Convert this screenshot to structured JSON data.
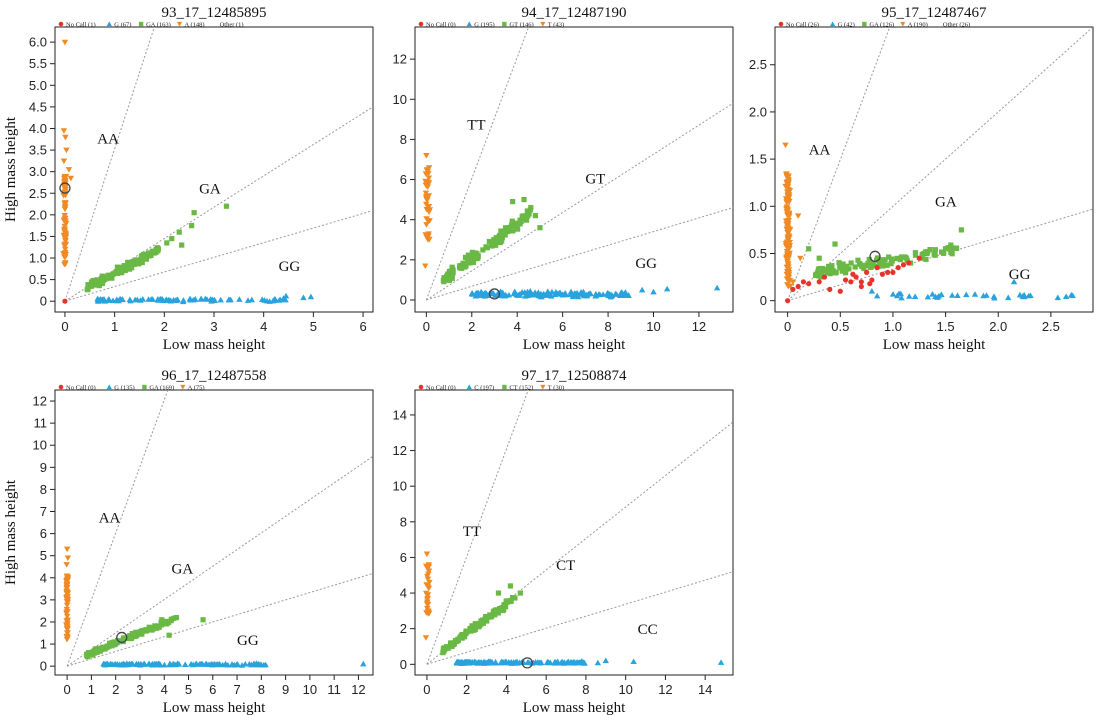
{
  "colors": {
    "no_call": "#e8322a",
    "hom_low": "#29a3dd",
    "het": "#6ab845",
    "hom_high": "#f08a24",
    "other": "#888888"
  },
  "chart_data": [
    {
      "type": "scatter",
      "title": "93_17_12485895",
      "xlabel": "Low mass height",
      "ylabel": "High mass height",
      "xlim": [
        -0.2,
        6.2
      ],
      "ylim": [
        -0.25,
        6.35
      ],
      "xticks": [
        0,
        1,
        2,
        3,
        4,
        5,
        6
      ],
      "yticks": [
        0,
        0.5,
        1.0,
        1.5,
        2.0,
        2.5,
        3.0,
        3.5,
        4.0,
        4.5,
        5.0,
        5.5,
        6.0
      ],
      "ytick_labels": [
        "0",
        "0.5",
        "1.0",
        "1.5",
        "2.0",
        "2.5",
        "3.0",
        "3.5",
        "4.0",
        "4.5",
        "5.0",
        "5.5",
        "6.0"
      ],
      "legend": [
        "No Call (1)",
        "G (67)",
        "GA (163)",
        "A (148)",
        "Other (1)"
      ],
      "legend_position": "top-left",
      "annotations": [
        {
          "text": "AA",
          "x": 0.65,
          "y": 3.65
        },
        {
          "text": "GA",
          "x": 2.7,
          "y": 2.5
        },
        {
          "text": "GG",
          "x": 4.3,
          "y": 0.7
        }
      ],
      "reference_lines": [
        {
          "x": [
            0,
            1.8
          ],
          "y": [
            0,
            6.35
          ]
        },
        {
          "x": [
            0,
            6.2
          ],
          "y": [
            0,
            4.5
          ]
        },
        {
          "x": [
            0,
            6.2
          ],
          "y": [
            0,
            2.1
          ]
        }
      ],
      "clusters": [
        {
          "name": "AA",
          "shape": "triangle-down",
          "color": "#f08a24",
          "x_center": 0.0,
          "x_spread": 0.04,
          "y_min": 0.85,
          "y_max": 2.9,
          "n": 70,
          "extra_points": [
            {
              "x": 0.0,
              "y": 6.0
            },
            {
              "x": -0.02,
              "y": 3.95
            },
            {
              "x": 0.01,
              "y": 3.8
            },
            {
              "x": 0.03,
              "y": 3.5
            },
            {
              "x": -0.02,
              "y": 3.25
            },
            {
              "x": 0.08,
              "y": 3.05
            },
            {
              "x": 0.12,
              "y": 2.85
            }
          ]
        },
        {
          "name": "GA",
          "shape": "square",
          "color": "#6ab845",
          "x_min": 0.45,
          "x_max": 1.9,
          "slope": 0.6,
          "intercept": 0.05,
          "spread": 0.13,
          "n": 110,
          "extra_points": [
            {
              "x": 2.15,
              "y": 1.45
            },
            {
              "x": 2.3,
              "y": 1.6
            },
            {
              "x": 2.55,
              "y": 1.75
            },
            {
              "x": 2.35,
              "y": 1.3
            },
            {
              "x": 2.6,
              "y": 2.05
            },
            {
              "x": 3.25,
              "y": 2.2
            },
            {
              "x": 2.05,
              "y": 1.35
            }
          ]
        },
        {
          "name": "GG",
          "shape": "triangle-up",
          "color": "#29a3dd",
          "x_min": 0.65,
          "x_max": 4.55,
          "y_center": 0.03,
          "y_spread": 0.05,
          "n": 90,
          "extra_points": [
            {
              "x": 4.8,
              "y": 0.08
            },
            {
              "x": 4.95,
              "y": 0.1
            },
            {
              "x": 4.45,
              "y": 0.12
            }
          ]
        },
        {
          "name": "No Call",
          "shape": "circle",
          "color": "#e8322a",
          "points": [
            {
              "x": 0.0,
              "y": 0.0
            }
          ]
        }
      ],
      "highlight": {
        "x": 0.0,
        "y": 2.62
      }
    },
    {
      "type": "scatter",
      "title": "94_17_12487190",
      "xlabel": "Low mass height",
      "ylabel": "",
      "xlim": [
        -0.5,
        13.5
      ],
      "ylim": [
        -0.6,
        13.6
      ],
      "xticks": [
        0,
        2,
        4,
        6,
        8,
        10,
        12
      ],
      "yticks": [
        0,
        2,
        4,
        6,
        8,
        10,
        12
      ],
      "ytick_labels": [
        "0",
        "2",
        "4",
        "6",
        "8",
        "10",
        "12"
      ],
      "legend": [
        "No Call (0)",
        "G (195)",
        "GT (146)",
        "T (43)"
      ],
      "legend_position": "top-left",
      "annotations": [
        {
          "text": "TT",
          "x": 1.8,
          "y": 8.5
        },
        {
          "text": "GT",
          "x": 7.0,
          "y": 5.8
        },
        {
          "text": "GG",
          "x": 9.2,
          "y": 1.6
        }
      ],
      "reference_lines": [
        {
          "x": [
            0,
            4.5
          ],
          "y": [
            0,
            13.6
          ]
        },
        {
          "x": [
            0,
            13.5
          ],
          "y": [
            0,
            9.8
          ]
        },
        {
          "x": [
            0,
            13.5
          ],
          "y": [
            0,
            4.6
          ]
        }
      ],
      "clusters": [
        {
          "name": "TT",
          "shape": "triangle-down",
          "color": "#f08a24",
          "x_center": 0.05,
          "x_spread": 0.15,
          "y_min": 3.0,
          "y_max": 6.8,
          "n": 40,
          "extra_points": [
            {
              "x": 0.0,
              "y": 7.2
            },
            {
              "x": -0.05,
              "y": 1.7
            },
            {
              "x": 0.1,
              "y": 3.3
            }
          ]
        },
        {
          "name": "GT",
          "shape": "square",
          "color": "#6ab845",
          "x_min": 0.7,
          "x_max": 4.6,
          "slope": 0.85,
          "intercept": 0.4,
          "spread": 0.4,
          "n": 120,
          "extra_points": [
            {
              "x": 4.3,
              "y": 5.0
            },
            {
              "x": 4.6,
              "y": 4.6
            },
            {
              "x": 4.8,
              "y": 4.2
            },
            {
              "x": 3.8,
              "y": 4.9
            },
            {
              "x": 5.0,
              "y": 3.6
            }
          ]
        },
        {
          "name": "GG",
          "shape": "triangle-up",
          "color": "#29a3dd",
          "x_min": 2.0,
          "x_max": 9.0,
          "y_center": 0.28,
          "y_spread": 0.18,
          "n": 160,
          "extra_points": [
            {
              "x": 9.5,
              "y": 0.5
            },
            {
              "x": 10.6,
              "y": 0.55
            },
            {
              "x": 12.8,
              "y": 0.6
            },
            {
              "x": 10.0,
              "y": 0.4
            }
          ]
        }
      ],
      "highlight": {
        "x": 3.0,
        "y": 0.3
      }
    },
    {
      "type": "scatter",
      "title": "95_17_12487467",
      "xlabel": "Low mass height",
      "ylabel": "",
      "xlim": [
        -0.12,
        2.9
      ],
      "ylim": [
        -0.12,
        2.9
      ],
      "xticks": [
        0,
        0.5,
        1.0,
        1.5,
        2.0,
        2.5
      ],
      "xtick_labels": [
        "0",
        "0.5",
        "1.0",
        "1.5",
        "2.0",
        "2.5"
      ],
      "yticks": [
        0,
        0.5,
        1.0,
        1.5,
        2.0,
        2.5
      ],
      "ytick_labels": [
        "0",
        "0.5",
        "1.0",
        "1.5",
        "2.0",
        "2.5"
      ],
      "legend": [
        "No Call (26)",
        "G (42)",
        "GA (126)",
        "A (190)",
        "Other (26)"
      ],
      "legend_position": "top-left",
      "annotations": [
        {
          "text": "AA",
          "x": 0.2,
          "y": 1.55
        },
        {
          "text": "GA",
          "x": 1.4,
          "y": 1.0
        },
        {
          "text": "GG",
          "x": 2.1,
          "y": 0.23
        }
      ],
      "reference_lines": [
        {
          "x": [
            0,
            0.97
          ],
          "y": [
            0,
            2.9
          ]
        },
        {
          "x": [
            0,
            2.9
          ],
          "y": [
            0,
            2.9
          ]
        },
        {
          "x": [
            0,
            2.9
          ],
          "y": [
            0,
            0.97
          ]
        }
      ],
      "clusters": [
        {
          "name": "AA",
          "shape": "triangle-down",
          "color": "#f08a24",
          "x_center": 0.0,
          "x_spread": 0.03,
          "y_min": 0.15,
          "y_max": 1.35,
          "n": 120,
          "extra_points": [
            {
              "x": -0.02,
              "y": 1.65
            },
            {
              "x": 0.05,
              "y": 0.2
            },
            {
              "x": 0.12,
              "y": 0.45
            },
            {
              "x": 0.1,
              "y": 0.9
            }
          ]
        },
        {
          "name": "GA",
          "shape": "square",
          "color": "#6ab845",
          "x_min": 0.25,
          "x_max": 1.65,
          "slope": 0.18,
          "intercept": 0.25,
          "spread": 0.09,
          "n": 110,
          "extra_points": [
            {
              "x": 1.65,
              "y": 0.75
            },
            {
              "x": 1.5,
              "y": 0.55
            },
            {
              "x": 0.45,
              "y": 0.6
            },
            {
              "x": 0.3,
              "y": 0.45
            },
            {
              "x": 0.2,
              "y": 0.55
            }
          ]
        },
        {
          "name": "GG",
          "shape": "triangle-up",
          "color": "#29a3dd",
          "x_min": 1.0,
          "x_max": 2.8,
          "y_center": 0.05,
          "y_spread": 0.04,
          "n": 32,
          "extra_points": [
            {
              "x": 0.8,
              "y": 0.1
            },
            {
              "x": 0.85,
              "y": 0.05
            },
            {
              "x": 2.15,
              "y": 0.2
            }
          ]
        },
        {
          "name": "No Call",
          "shape": "circle",
          "color": "#e8322a",
          "points": [
            {
              "x": 0.0,
              "y": 0.0
            },
            {
              "x": 0.05,
              "y": 0.12
            },
            {
              "x": 0.15,
              "y": 0.2
            },
            {
              "x": 0.35,
              "y": 0.25
            },
            {
              "x": 0.5,
              "y": 0.1
            },
            {
              "x": 0.6,
              "y": 0.2
            },
            {
              "x": 0.65,
              "y": 0.25
            },
            {
              "x": 0.7,
              "y": 0.2
            },
            {
              "x": 0.75,
              "y": 0.3
            },
            {
              "x": 0.8,
              "y": 0.22
            },
            {
              "x": 0.85,
              "y": 0.35
            },
            {
              "x": 0.95,
              "y": 0.3
            },
            {
              "x": 1.05,
              "y": 0.35
            },
            {
              "x": 1.15,
              "y": 0.4
            },
            {
              "x": 1.25,
              "y": 0.45
            },
            {
              "x": 0.2,
              "y": 0.18
            },
            {
              "x": 0.1,
              "y": 0.15
            },
            {
              "x": 0.55,
              "y": 0.22
            },
            {
              "x": 0.9,
              "y": 0.28
            },
            {
              "x": 1.0,
              "y": 0.3
            },
            {
              "x": 0.7,
              "y": 0.15
            },
            {
              "x": 0.4,
              "y": 0.12
            },
            {
              "x": 1.1,
              "y": 0.38
            },
            {
              "x": 0.3,
              "y": 0.2
            },
            {
              "x": 0.62,
              "y": 0.28
            },
            {
              "x": 0.78,
              "y": 0.18
            }
          ]
        }
      ],
      "highlight": {
        "x": 0.83,
        "y": 0.47
      }
    },
    {
      "type": "scatter",
      "title": "96_17_12487558",
      "xlabel": "Low mass height",
      "ylabel": "High mass height",
      "xlim": [
        -0.5,
        12.6
      ],
      "ylim": [
        -0.4,
        12.5
      ],
      "xticks": [
        0,
        1,
        2,
        3,
        4,
        5,
        6,
        7,
        8,
        9,
        10,
        11,
        12
      ],
      "yticks": [
        0,
        1,
        2,
        3,
        4,
        5,
        6,
        7,
        8,
        9,
        10,
        11,
        12
      ],
      "ytick_labels": [
        "0",
        "1",
        "2",
        "3",
        "4",
        "5",
        "6",
        "7",
        "8",
        "9",
        "10",
        "11",
        "12"
      ],
      "legend": [
        "No Call (0)",
        "G (135)",
        "GA (169)",
        "A (75)"
      ],
      "legend_position": "top-left",
      "annotations": [
        {
          "text": "AA",
          "x": 1.3,
          "y": 6.5
        },
        {
          "text": "GA",
          "x": 4.3,
          "y": 4.2
        },
        {
          "text": "GG",
          "x": 7.0,
          "y": 0.95
        }
      ],
      "reference_lines": [
        {
          "x": [
            0,
            4.15
          ],
          "y": [
            0,
            12.5
          ]
        },
        {
          "x": [
            0,
            12.6
          ],
          "y": [
            0,
            9.5
          ]
        },
        {
          "x": [
            0,
            12.6
          ],
          "y": [
            0,
            4.2
          ]
        }
      ],
      "clusters": [
        {
          "name": "AA",
          "shape": "triangle-down",
          "color": "#f08a24",
          "x_center": 0.0,
          "x_spread": 0.05,
          "y_min": 1.2,
          "y_max": 4.1,
          "n": 65,
          "extra_points": [
            {
              "x": 0.0,
              "y": 5.3
            },
            {
              "x": -0.02,
              "y": 4.6
            },
            {
              "x": 0.03,
              "y": 4.9
            }
          ]
        },
        {
          "name": "GA",
          "shape": "square",
          "color": "#6ab845",
          "x_min": 0.8,
          "x_max": 4.4,
          "slope": 0.45,
          "intercept": 0.15,
          "spread": 0.15,
          "n": 140,
          "extra_points": [
            {
              "x": 4.5,
              "y": 2.2
            },
            {
              "x": 5.6,
              "y": 2.1
            },
            {
              "x": 4.2,
              "y": 1.4
            },
            {
              "x": 3.9,
              "y": 2.1
            }
          ]
        },
        {
          "name": "GG",
          "shape": "triangle-up",
          "color": "#29a3dd",
          "x_min": 1.5,
          "x_max": 8.2,
          "y_center": 0.08,
          "y_spread": 0.06,
          "n": 120,
          "extra_points": [
            {
              "x": 12.2,
              "y": 0.1
            },
            {
              "x": 7.8,
              "y": 0.12
            },
            {
              "x": 8.1,
              "y": 0.05
            }
          ]
        }
      ],
      "highlight": {
        "x": 2.25,
        "y": 1.3
      }
    },
    {
      "type": "scatter",
      "title": "97_17_12508874",
      "xlabel": "Low mass height",
      "ylabel": "",
      "xlim": [
        -0.6,
        15.4
      ],
      "ylim": [
        -0.6,
        15.4
      ],
      "xticks": [
        0,
        2,
        4,
        6,
        8,
        10,
        12,
        14
      ],
      "yticks": [
        0,
        2,
        4,
        6,
        8,
        10,
        12,
        14
      ],
      "ytick_labels": [
        "0",
        "2",
        "4",
        "6",
        "8",
        "10",
        "12",
        "14"
      ],
      "legend": [
        "No Call (0)",
        "C (197)",
        "CT (152)",
        "T (30)"
      ],
      "legend_position": "top-left",
      "annotations": [
        {
          "text": "TT",
          "x": 1.8,
          "y": 7.2
        },
        {
          "text": "CT",
          "x": 6.5,
          "y": 5.3
        },
        {
          "text": "CC",
          "x": 10.6,
          "y": 1.7
        }
      ],
      "reference_lines": [
        {
          "x": [
            0,
            5.1
          ],
          "y": [
            0,
            15.4
          ]
        },
        {
          "x": [
            0,
            15.4
          ],
          "y": [
            0,
            13.6
          ]
        },
        {
          "x": [
            0,
            15.4
          ],
          "y": [
            0,
            5.2
          ]
        }
      ],
      "clusters": [
        {
          "name": "TT",
          "shape": "triangle-down",
          "color": "#f08a24",
          "x_center": 0.05,
          "x_spread": 0.15,
          "y_min": 2.6,
          "y_max": 5.6,
          "n": 28,
          "extra_points": [
            {
              "x": 0.0,
              "y": 6.2
            },
            {
              "x": -0.05,
              "y": 1.5
            }
          ]
        },
        {
          "name": "CT",
          "shape": "square",
          "color": "#6ab845",
          "x_min": 0.8,
          "x_max": 4.5,
          "slope": 0.82,
          "intercept": 0.1,
          "spread": 0.25,
          "n": 130,
          "extra_points": [
            {
              "x": 4.2,
              "y": 4.4
            },
            {
              "x": 4.7,
              "y": 4.0
            },
            {
              "x": 3.6,
              "y": 4.0
            }
          ]
        },
        {
          "name": "CC",
          "shape": "triangle-up",
          "color": "#29a3dd",
          "x_min": 1.5,
          "x_max": 8.0,
          "y_center": 0.1,
          "y_spread": 0.08,
          "n": 150,
          "extra_points": [
            {
              "x": 14.8,
              "y": 0.1
            },
            {
              "x": 10.4,
              "y": 0.15
            },
            {
              "x": 9.0,
              "y": 0.2
            },
            {
              "x": 8.6,
              "y": 0.08
            }
          ]
        }
      ],
      "highlight": {
        "x": 5.05,
        "y": 0.08
      }
    }
  ]
}
